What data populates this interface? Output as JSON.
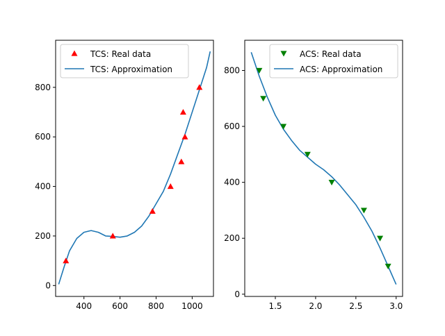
{
  "chart_data": [
    {
      "type": "line",
      "title": "",
      "xlabel": "",
      "ylabel": "",
      "xlim": [
        243,
        1118
      ],
      "ylim": [
        -44,
        990
      ],
      "xticks": [
        400,
        600,
        800,
        1000
      ],
      "yticks": [
        0,
        200,
        400,
        600,
        800
      ],
      "legend_position": "upper left",
      "scatter": {
        "name": "TCS: Real data",
        "marker": "triangle-up",
        "color": "#ff0000",
        "x": [
          300,
          560,
          780,
          880,
          940,
          950,
          960,
          1040
        ],
        "y": [
          100,
          200,
          300,
          400,
          500,
          700,
          600,
          800
        ]
      },
      "curve": {
        "name": "TCS: Approximation",
        "color": "#1f77b4",
        "x": [
          260,
          290,
          320,
          360,
          400,
          440,
          480,
          520,
          560,
          600,
          640,
          680,
          720,
          760,
          800,
          840,
          880,
          920,
          960,
          1000,
          1040,
          1080,
          1100
        ],
        "y": [
          5,
          75,
          140,
          190,
          215,
          222,
          215,
          200,
          198,
          195,
          200,
          215,
          240,
          280,
          330,
          380,
          450,
          530,
          610,
          700,
          790,
          880,
          945
        ]
      }
    },
    {
      "type": "line",
      "title": "",
      "xlabel": "",
      "ylabel": "",
      "xlim": [
        1.12,
        3.08
      ],
      "ylim": [
        -8,
        908
      ],
      "xticks": [
        1.5,
        2.0,
        2.5,
        3.0
      ],
      "xtick_labels": [
        "1.5",
        "2.0",
        "2.5",
        "3.0"
      ],
      "yticks": [
        0,
        200,
        400,
        600,
        800
      ],
      "legend_position": "upper right",
      "scatter": {
        "name": "ACS: Real data",
        "marker": "triangle-down",
        "color": "#008000",
        "x": [
          1.3,
          1.35,
          1.6,
          1.9,
          2.2,
          2.6,
          2.8,
          2.9
        ],
        "y": [
          800,
          700,
          600,
          500,
          400,
          300,
          200,
          100
        ]
      },
      "curve": {
        "name": "ACS: Approximation",
        "color": "#1f77b4",
        "x": [
          1.2,
          1.3,
          1.4,
          1.5,
          1.6,
          1.7,
          1.8,
          1.9,
          2.0,
          2.1,
          2.2,
          2.3,
          2.4,
          2.5,
          2.6,
          2.7,
          2.8,
          2.9,
          3.0
        ],
        "y": [
          865,
          780,
          705,
          640,
          590,
          550,
          515,
          490,
          465,
          445,
          420,
          390,
          355,
          320,
          275,
          225,
          165,
          100,
          35
        ]
      }
    }
  ]
}
